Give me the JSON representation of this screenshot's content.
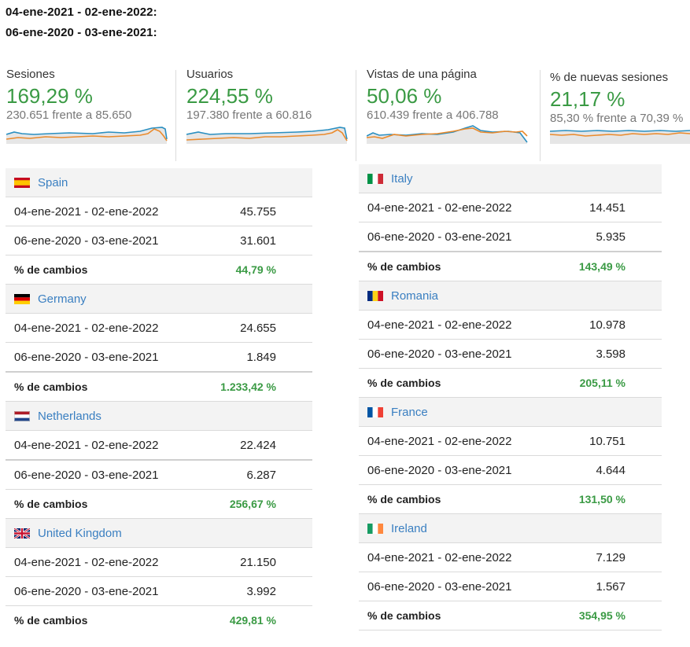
{
  "date_ranges": {
    "current": "04-ene-2021 - 02-ene-2022:",
    "previous": "06-ene-2020 - 03-ene-2021:"
  },
  "colors": {
    "current_series": "#2a8fc1",
    "previous_series": "#ea8a2c",
    "positive": "#3a9a44",
    "link": "#3a7fc1"
  },
  "metrics": [
    {
      "label": "Sesiones",
      "change": "169,29 %",
      "compare": "230.651 frente a 85.650"
    },
    {
      "label": "Usuarios",
      "change": "224,55 %",
      "compare": "197.380 frente a 60.816"
    },
    {
      "label": "Vistas de una página",
      "change": "50,06 %",
      "compare": "610.439 frente a 406.788"
    },
    {
      "label": "% de nuevas sesiones",
      "change": "21,17 %",
      "compare": "85,30 % frente a 70,39 %"
    }
  ],
  "row_labels": {
    "current": "04-ene-2021 - 02-ene-2022",
    "previous": "06-ene-2020 - 03-ene-2021",
    "change": "% de cambios"
  },
  "countries_left": [
    {
      "name": "Spain",
      "flag": "spain-flag-icon",
      "current": "45.755",
      "previous": "31.601",
      "change": "44,79 %"
    },
    {
      "name": "Germany",
      "flag": "germany-flag-icon",
      "current": "24.655",
      "previous": "1.849",
      "change": "1.233,42 %"
    },
    {
      "name": "Netherlands",
      "flag": "netherlands-flag-icon",
      "current": "22.424",
      "previous": "6.287",
      "change": "256,67 %"
    },
    {
      "name": "United Kingdom",
      "flag": "uk-flag-icon",
      "current": "21.150",
      "previous": "3.992",
      "change": "429,81 %"
    }
  ],
  "countries_right": [
    {
      "name": "Italy",
      "flag": "italy-flag-icon",
      "current": "14.451",
      "previous": "5.935",
      "change": "143,49 %"
    },
    {
      "name": "Romania",
      "flag": "romania-flag-icon",
      "current": "10.978",
      "previous": "3.598",
      "change": "205,11 %"
    },
    {
      "name": "France",
      "flag": "france-flag-icon",
      "current": "10.751",
      "previous": "4.644",
      "change": "131,50 %"
    },
    {
      "name": "Ireland",
      "flag": "ireland-flag-icon",
      "current": "7.129",
      "previous": "1.567",
      "change": "354,95 %"
    }
  ]
}
